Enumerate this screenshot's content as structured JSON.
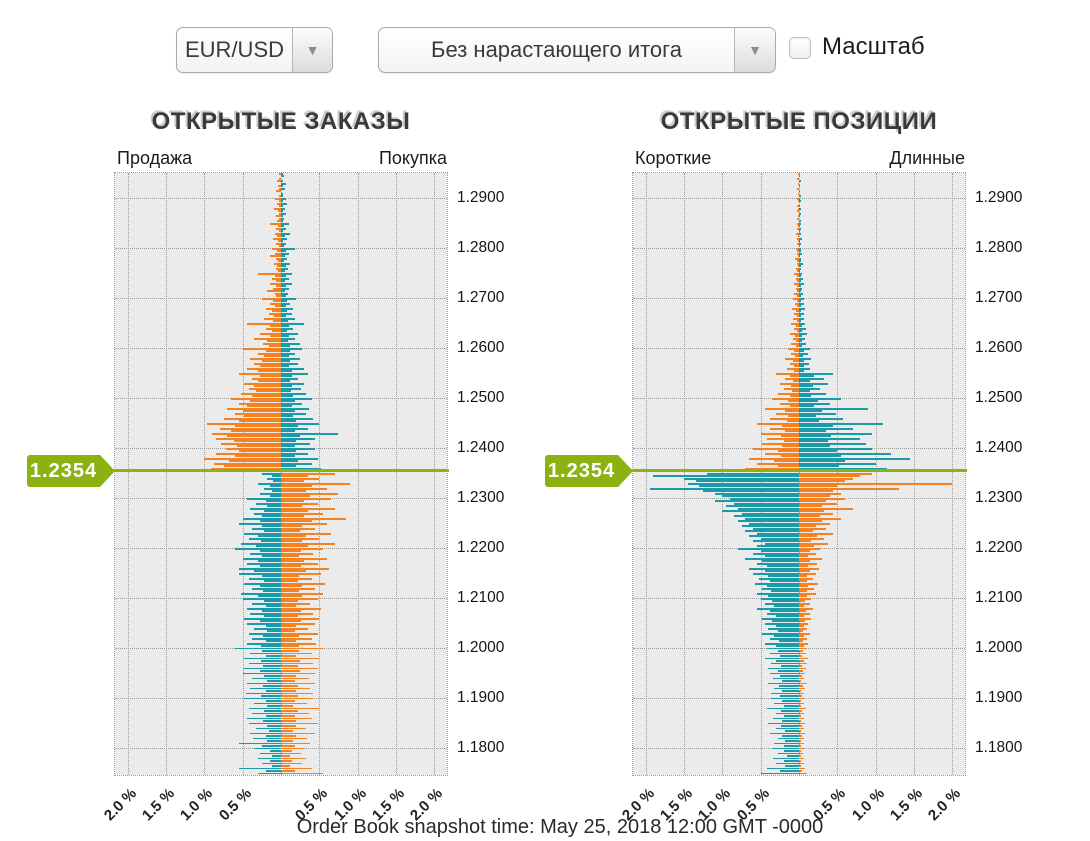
{
  "controls": {
    "pair_select": {
      "value": "EUR/USD"
    },
    "mode_select": {
      "value": "Без нарастающего итога"
    },
    "scale_checkbox": {
      "label": "Масштаб",
      "checked": false
    }
  },
  "colors": {
    "orange": "#F58220",
    "teal": "#1B9AAA",
    "green": "#8CB212",
    "plot_bg": "#EBEBEB",
    "grid": "#9A9A9A"
  },
  "current_price_label": "1.2354",
  "caption": "Order Book snapshot time: May 25, 2018 12:00 GMT -0000",
  "chart_data": [
    {
      "type": "bar",
      "orientation": "horizontal-mirrored",
      "title": "ОТКРЫТЫЕ ЗАКАЗЫ",
      "left_header": "Продажа",
      "right_header": "Покупка",
      "x_axis_unit": "%",
      "xlim_pct": 2.0,
      "x_ticks": [
        "2.0 %",
        "1.5 %",
        "1.0 %",
        "0.5 %",
        "0.5 %",
        "1.0 %",
        "1.5 %",
        "2.0 %"
      ],
      "y_ticks": [
        "1.2900",
        "1.2800",
        "1.2700",
        "1.2600",
        "1.2500",
        "1.2400",
        "1.2300",
        "1.2200",
        "1.2100",
        "1.2000",
        "1.1900",
        "1.1800"
      ],
      "price_top": 1.295,
      "price_bottom": 1.175,
      "price_step": 0.0005,
      "current_price": 1.2354,
      "value_unit": "hundredths_of_percent",
      "left_values": [
        3,
        0,
        2,
        5,
        0,
        4,
        2,
        6,
        0,
        3,
        8,
        2,
        5,
        3,
        9,
        4,
        2,
        7,
        3,
        5,
        15,
        4,
        6,
        3,
        8,
        5,
        10,
        4,
        6,
        3,
        12,
        5,
        8,
        14,
        6,
        4,
        9,
        5,
        7,
        4,
        30,
        8,
        12,
        6,
        15,
        7,
        10,
        18,
        8,
        6,
        25,
        10,
        14,
        8,
        20,
        12,
        16,
        9,
        22,
        11,
        45,
        15,
        20,
        12,
        28,
        14,
        35,
        18,
        24,
        16,
        50,
        20,
        30,
        22,
        40,
        25,
        35,
        28,
        45,
        30,
        55,
        28,
        38,
        30,
        48,
        35,
        42,
        32,
        52,
        38,
        65,
        40,
        55,
        45,
        70,
        50,
        60,
        48,
        75,
        55,
        97,
        60,
        80,
        65,
        90,
        70,
        85,
        62,
        78,
        58,
        72,
        55,
        85,
        60,
        100,
        68,
        88,
        75,
        92,
        90,
        25,
        12,
        18,
        10,
        30,
        15,
        22,
        12,
        28,
        14,
        45,
        20,
        32,
        18,
        40,
        22,
        35,
        25,
        50,
        28,
        55,
        25,
        38,
        22,
        48,
        30,
        42,
        26,
        52,
        32,
        60,
        28,
        40,
        25,
        50,
        30,
        45,
        28,
        55,
        35,
        55,
        25,
        42,
        22,
        48,
        28,
        38,
        24,
        52,
        30,
        50,
        22,
        38,
        20,
        45,
        25,
        40,
        22,
        48,
        28,
        45,
        20,
        35,
        18,
        42,
        24,
        38,
        20,
        44,
        26,
        60,
        25,
        40,
        20,
        48,
        26,
        42,
        24,
        50,
        28,
        50,
        22,
        38,
        18,
        45,
        24,
        40,
        20,
        46,
        26,
        48,
        20,
        35,
        18,
        42,
        22,
        38,
        20,
        44,
        24,
        42,
        18,
        32,
        16,
        40,
        20,
        36,
        18,
        55,
        25,
        35,
        15,
        28,
        12,
        30,
        15,
        25,
        12,
        55,
        20,
        30
      ],
      "right_values": [
        2,
        4,
        0,
        3,
        6,
        2,
        5,
        0,
        3,
        2,
        6,
        3,
        8,
        2,
        5,
        3,
        7,
        2,
        4,
        3,
        10,
        4,
        6,
        3,
        12,
        5,
        8,
        3,
        6,
        4,
        18,
        6,
        10,
        5,
        8,
        4,
        12,
        6,
        9,
        5,
        15,
        6,
        10,
        5,
        14,
        6,
        11,
        5,
        9,
        6,
        20,
        8,
        12,
        6,
        16,
        8,
        14,
        7,
        18,
        9,
        30,
        10,
        16,
        8,
        22,
        10,
        18,
        9,
        25,
        12,
        28,
        12,
        18,
        10,
        25,
        12,
        22,
        11,
        30,
        14,
        35,
        15,
        22,
        12,
        30,
        15,
        26,
        13,
        33,
        16,
        40,
        18,
        28,
        15,
        36,
        18,
        32,
        16,
        42,
        20,
        50,
        22,
        35,
        18,
        75,
        25,
        45,
        20,
        38,
        18,
        45,
        20,
        35,
        18,
        48,
        22,
        40,
        20,
        52,
        55,
        70,
        35,
        50,
        30,
        90,
        40,
        60,
        32,
        75,
        38,
        65,
        30,
        48,
        28,
        70,
        35,
        55,
        30,
        85,
        40,
        60,
        28,
        45,
        25,
        65,
        32,
        50,
        28,
        70,
        35,
        55,
        26,
        42,
        24,
        60,
        30,
        48,
        26,
        63,
        32,
        52,
        24,
        40,
        22,
        58,
        28,
        45,
        24,
        55,
        28,
        48,
        22,
        38,
        20,
        52,
        26,
        42,
        22,
        50,
        26,
        45,
        20,
        35,
        18,
        48,
        24,
        40,
        20,
        46,
        24,
        55,
        24,
        40,
        20,
        50,
        25,
        42,
        22,
        48,
        25,
        45,
        20,
        36,
        18,
        44,
        22,
        38,
        20,
        42,
        22,
        42,
        18,
        34,
        16,
        50,
        22,
        36,
        18,
        40,
        20,
        48,
        20,
        32,
        16,
        44,
        20,
        34,
        16,
        38,
        18,
        30,
        14,
        26,
        12,
        32,
        15,
        28,
        12,
        40,
        18,
        55
      ]
    },
    {
      "type": "bar",
      "orientation": "horizontal-mirrored",
      "title": "ОТКРЫТЫЕ ПОЗИЦИИ",
      "left_header": "Короткие",
      "right_header": "Длинные",
      "x_axis_unit": "%",
      "xlim_pct": 2.0,
      "x_ticks": [
        "2.0 %",
        "1.5 %",
        "1.0 %",
        "0.5 %",
        "0.5 %",
        "1.0 %",
        "1.5 %",
        "2.0 %"
      ],
      "y_ticks": [
        "1.2900",
        "1.2800",
        "1.2700",
        "1.2600",
        "1.2500",
        "1.2400",
        "1.2300",
        "1.2200",
        "1.2100",
        "1.2000",
        "1.1900",
        "1.1800"
      ],
      "price_top": 1.295,
      "price_bottom": 1.175,
      "price_step": 0.0005,
      "current_price": 1.2354,
      "value_unit": "hundredths_of_percent",
      "left_values": [
        1,
        0,
        2,
        0,
        1,
        0,
        2,
        0,
        1,
        0,
        2,
        1,
        0,
        2,
        1,
        3,
        0,
        1,
        2,
        0,
        3,
        1,
        2,
        0,
        4,
        1,
        2,
        1,
        3,
        0,
        4,
        2,
        3,
        1,
        5,
        2,
        3,
        1,
        4,
        2,
        6,
        2,
        4,
        2,
        7,
        3,
        4,
        2,
        6,
        2,
        8,
        3,
        5,
        2,
        9,
        4,
        6,
        3,
        8,
        3,
        10,
        4,
        7,
        3,
        12,
        5,
        8,
        4,
        10,
        4,
        15,
        6,
        10,
        5,
        18,
        8,
        12,
        6,
        16,
        7,
        30,
        12,
        18,
        8,
        25,
        10,
        20,
        9,
        28,
        12,
        35,
        15,
        25,
        12,
        45,
        18,
        30,
        14,
        38,
        16,
        55,
        22,
        38,
        18,
        50,
        24,
        42,
        20,
        48,
        22,
        60,
        28,
        45,
        24,
        65,
        32,
        55,
        28,
        70,
        172,
        120,
        190,
        150,
        135,
        145,
        130,
        195,
        125,
        110,
        100,
        90,
        110,
        85,
        95,
        80,
        100,
        75,
        85,
        70,
        80,
        65,
        75,
        60,
        70,
        55,
        65,
        50,
        60,
        45,
        55,
        80,
        50,
        60,
        45,
        70,
        48,
        55,
        42,
        65,
        45,
        60,
        40,
        52,
        38,
        58,
        42,
        48,
        36,
        55,
        40,
        50,
        35,
        45,
        32,
        55,
        38,
        42,
        30,
        48,
        35,
        45,
        30,
        40,
        28,
        48,
        32,
        38,
        26,
        44,
        30,
        42,
        28,
        38,
        25,
        45,
        30,
        36,
        24,
        40,
        28,
        38,
        25,
        34,
        22,
        40,
        26,
        32,
        22,
        36,
        25,
        36,
        22,
        32,
        20,
        42,
        24,
        30,
        20,
        34,
        22,
        40,
        24,
        30,
        18,
        38,
        22,
        28,
        18,
        32,
        20,
        35,
        20,
        28,
        16,
        34,
        20,
        30,
        18,
        42,
        25,
        50
      ],
      "right_values": [
        0,
        1,
        0,
        2,
        0,
        1,
        0,
        1,
        0,
        2,
        1,
        2,
        0,
        1,
        2,
        0,
        3,
        1,
        0,
        2,
        2,
        1,
        3,
        1,
        2,
        0,
        4,
        1,
        2,
        1,
        3,
        2,
        4,
        1,
        3,
        2,
        5,
        2,
        3,
        1,
        4,
        2,
        5,
        2,
        6,
        2,
        4,
        2,
        5,
        2,
        6,
        3,
        7,
        3,
        8,
        3,
        6,
        3,
        7,
        3,
        8,
        4,
        9,
        4,
        10,
        4,
        8,
        4,
        9,
        4,
        14,
        6,
        12,
        5,
        16,
        7,
        13,
        6,
        15,
        7,
        45,
        20,
        32,
        15,
        38,
        18,
        28,
        14,
        35,
        16,
        55,
        25,
        40,
        20,
        90,
        30,
        48,
        22,
        58,
        26,
        110,
        45,
        70,
        35,
        95,
        42,
        80,
        38,
        88,
        40,
        95,
        50,
        120,
        55,
        145,
        60,
        100,
        52,
        115,
        185,
        95,
        80,
        70,
        60,
        200,
        50,
        130,
        45,
        55,
        40,
        60,
        35,
        50,
        30,
        70,
        32,
        45,
        28,
        55,
        30,
        40,
        22,
        35,
        18,
        45,
        24,
        32,
        16,
        38,
        20,
        28,
        14,
        22,
        12,
        30,
        15,
        24,
        12,
        26,
        14,
        22,
        11,
        18,
        10,
        25,
        12,
        20,
        10,
        22,
        11,
        16,
        8,
        14,
        7,
        18,
        9,
        15,
        7,
        16,
        8,
        12,
        6,
        10,
        5,
        14,
        7,
        11,
        5,
        12,
        6,
        10,
        5,
        9,
        4,
        12,
        6,
        10,
        4,
        9,
        5,
        8,
        4,
        7,
        3,
        10,
        5,
        8,
        3,
        7,
        4,
        7,
        3,
        6,
        3,
        9,
        4,
        7,
        3,
        6,
        3,
        8,
        4,
        6,
        3,
        8,
        4,
        6,
        3,
        7,
        3,
        6,
        3,
        5,
        2,
        7,
        3,
        6,
        2,
        8,
        4,
        10
      ]
    }
  ]
}
